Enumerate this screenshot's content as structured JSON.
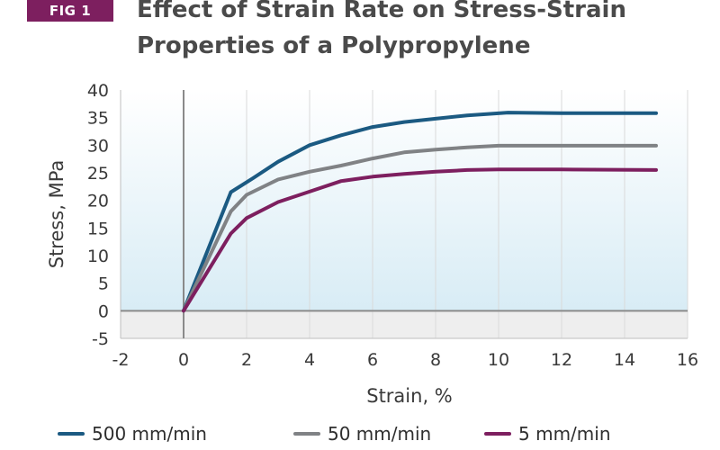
{
  "badge": "FIG 1",
  "title_line1": "Effect of Strain Rate on Stress-Strain",
  "title_line2": "Properties of a Polypropylene",
  "chart_data": {
    "type": "line",
    "xlabel": "Strain, %",
    "ylabel": "Stress, MPa",
    "xlim": [
      -2,
      16
    ],
    "ylim": [
      -5,
      40
    ],
    "xticks": [
      -2,
      0,
      2,
      4,
      6,
      8,
      10,
      12,
      14,
      16
    ],
    "yticks": [
      -5,
      0,
      5,
      10,
      15,
      20,
      25,
      30,
      35,
      40
    ],
    "grid": "vertical",
    "legend_position": "bottom",
    "series": [
      {
        "name": "500 mm/min",
        "color": "#1b5a82",
        "points": [
          [
            0,
            0
          ],
          [
            1.5,
            21.5
          ],
          [
            2.2,
            24
          ],
          [
            3,
            27
          ],
          [
            4,
            30
          ],
          [
            5,
            31.8
          ],
          [
            6,
            33.3
          ],
          [
            7,
            34.2
          ],
          [
            8,
            34.8
          ],
          [
            9,
            35.4
          ],
          [
            10.3,
            35.9
          ],
          [
            12,
            35.8
          ],
          [
            15,
            35.8
          ]
        ]
      },
      {
        "name": "50 mm/min",
        "color": "#808285",
        "points": [
          [
            0,
            0
          ],
          [
            1.5,
            18
          ],
          [
            2,
            21
          ],
          [
            3,
            23.8
          ],
          [
            4,
            25.2
          ],
          [
            5,
            26.3
          ],
          [
            6,
            27.6
          ],
          [
            7,
            28.7
          ],
          [
            8,
            29.2
          ],
          [
            9,
            29.6
          ],
          [
            10,
            29.9
          ],
          [
            12,
            29.9
          ],
          [
            15,
            29.9
          ]
        ]
      },
      {
        "name": "5 mm/min",
        "color": "#7d1f5f",
        "points": [
          [
            0,
            0
          ],
          [
            1.5,
            14
          ],
          [
            2,
            16.8
          ],
          [
            3,
            19.7
          ],
          [
            4,
            21.6
          ],
          [
            5,
            23.5
          ],
          [
            6,
            24.3
          ],
          [
            7,
            24.8
          ],
          [
            8,
            25.2
          ],
          [
            9,
            25.5
          ],
          [
            10,
            25.6
          ],
          [
            12,
            25.6
          ],
          [
            15,
            25.5
          ]
        ]
      }
    ]
  }
}
